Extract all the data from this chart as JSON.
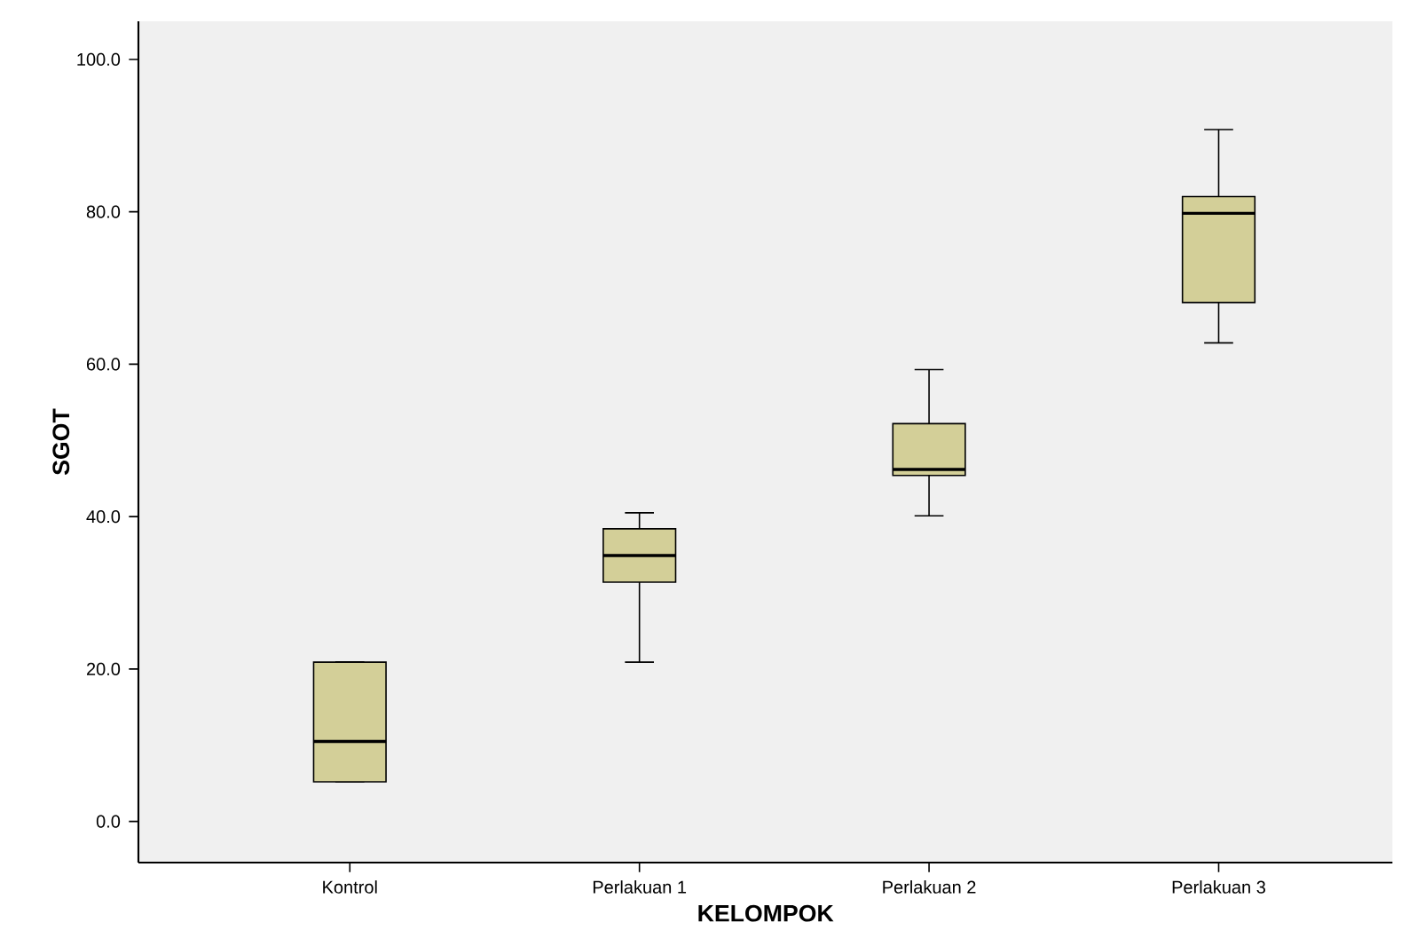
{
  "chart_data": {
    "type": "box",
    "xlabel": "KELOMPOK",
    "ylabel": "SGOT",
    "color": "#d3cf98",
    "categories": [
      "Kontrol",
      "Perlakuan 1",
      "Perlakuan 2",
      "Perlakuan 3"
    ],
    "boxes": [
      {
        "low": 5.2,
        "q1": 5.2,
        "median": 10.5,
        "q3": 20.9,
        "high": 20.9
      },
      {
        "low": 20.9,
        "q1": 31.4,
        "median": 34.9,
        "q3": 38.4,
        "high": 40.5
      },
      {
        "low": 40.1,
        "q1": 45.4,
        "median": 46.2,
        "q3": 52.2,
        "high": 59.3
      },
      {
        "low": 62.8,
        "q1": 68.1,
        "median": 79.8,
        "q3": 82.0,
        "high": 90.8
      }
    ],
    "ylim": [
      -5.4,
      105
    ],
    "yticks": [
      {
        "value": 0,
        "label": "0.0"
      },
      {
        "value": 20,
        "label": "20.0"
      },
      {
        "value": 40,
        "label": "40.0"
      },
      {
        "value": 60,
        "label": "60.0"
      },
      {
        "value": 80,
        "label": "80.0"
      },
      {
        "value": 100,
        "label": "100.0"
      }
    ]
  }
}
